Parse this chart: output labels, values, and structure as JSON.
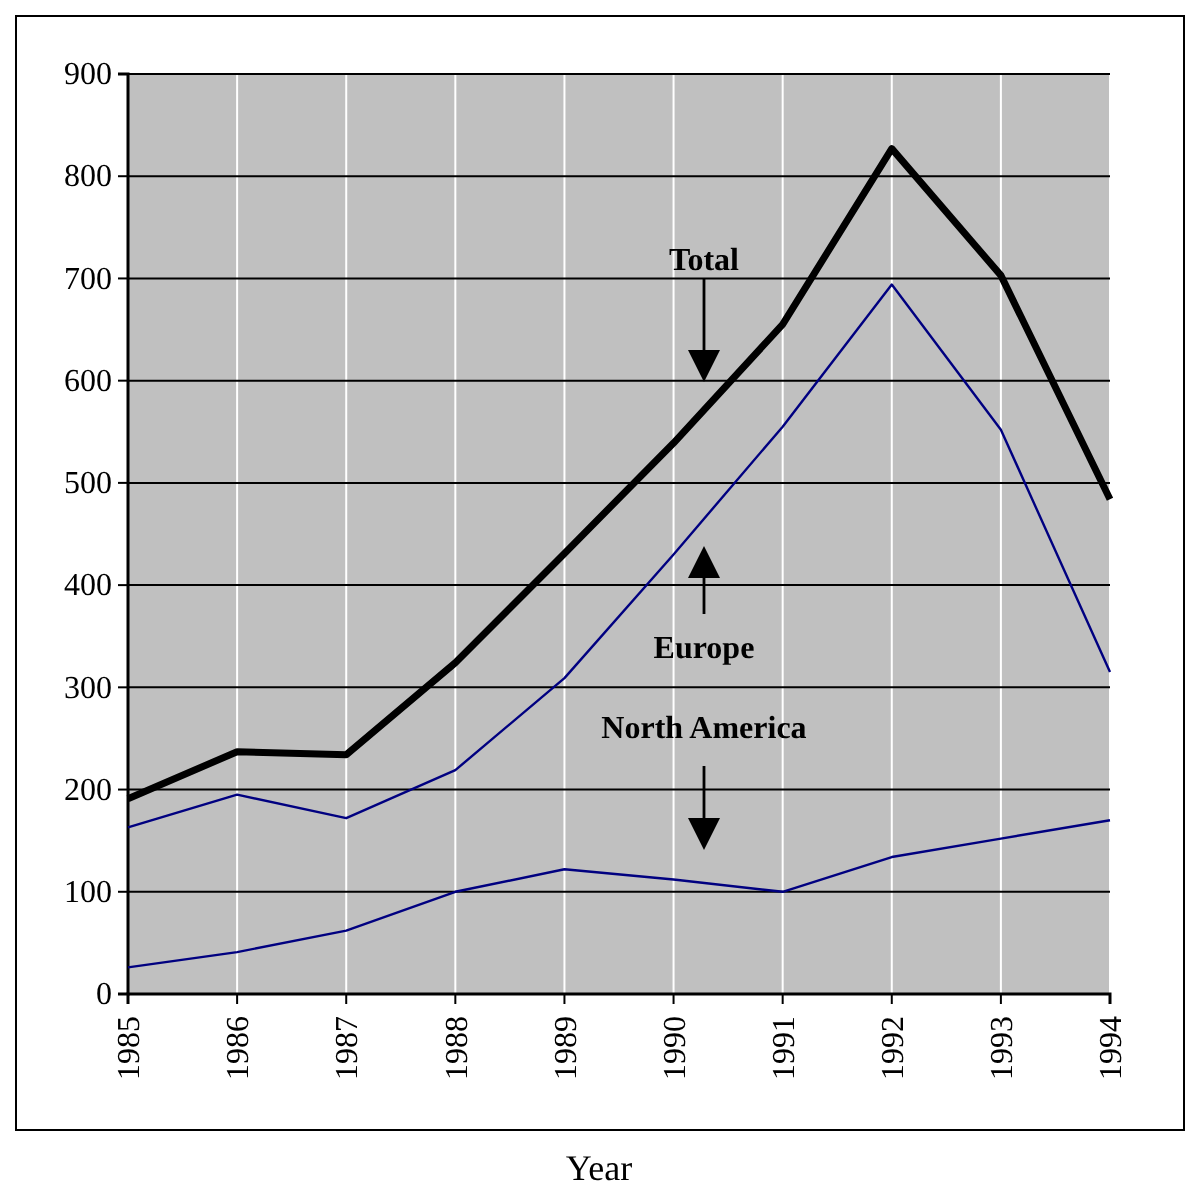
{
  "chart_data": {
    "type": "line",
    "xlabel": "Year",
    "categories": [
      "1985",
      "1986",
      "1987",
      "1988",
      "1989",
      "1990",
      "1991",
      "1992",
      "1993",
      "1994"
    ],
    "series": [
      {
        "color": "#000000",
        "values": [
          191,
          237,
          234,
          324,
          431,
          539,
          655,
          827,
          703,
          484
        ]
      },
      {
        "color": "#000080",
        "values": [
          163,
          195,
          172,
          219,
          309,
          430,
          555,
          694,
          552,
          315
        ]
      },
      {
        "color": "#000080",
        "values": [
          26,
          41,
          62,
          100,
          122,
          112,
          100,
          134,
          152,
          170
        ]
      }
    ],
    "annotations": [
      "Total",
      "Europe",
      "North America"
    ],
    "ylim": [
      0,
      900
    ],
    "yticks": [
      0,
      100,
      200,
      300,
      400,
      500,
      600,
      700,
      800,
      900
    ],
    "grid": true,
    "marker": "none",
    "line_style": "solid"
  }
}
